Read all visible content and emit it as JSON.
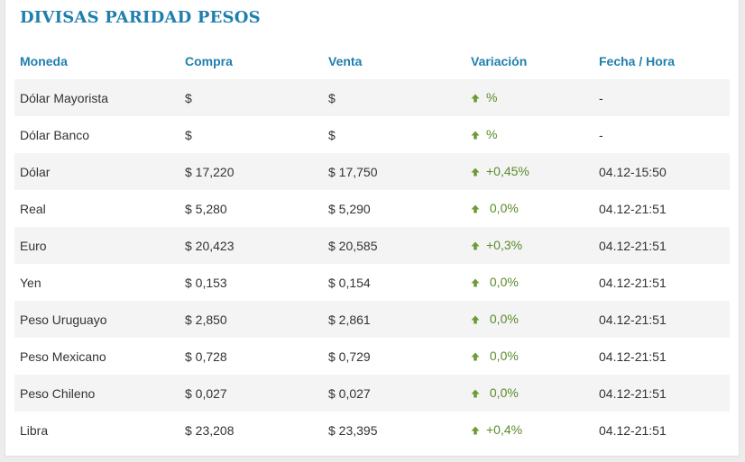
{
  "title": "DIVISAS PARIDAD PESOS",
  "colors": {
    "accent": "#1e7fae",
    "up": "#5a8a2a"
  },
  "headers": {
    "moneda": "Moneda",
    "compra": "Compra",
    "venta": "Venta",
    "variacion": "Variación",
    "fecha": "Fecha / Hora"
  },
  "rows": [
    {
      "moneda": "Dólar Mayorista",
      "compra": "$",
      "venta": "$",
      "variacion": "%",
      "fecha": "-",
      "trend_icon": "arrow-up-icon"
    },
    {
      "moneda": "Dólar Banco",
      "compra": "$",
      "venta": "$",
      "variacion": "%",
      "fecha": "-",
      "trend_icon": "arrow-up-icon"
    },
    {
      "moneda": "Dólar",
      "compra": "$ 17,220",
      "venta": "$ 17,750",
      "variacion": "+0,45%",
      "fecha": "04.12-15:50",
      "trend_icon": "arrow-up-icon"
    },
    {
      "moneda": "Real",
      "compra": "$ 5,280",
      "venta": "$ 5,290",
      "variacion": " 0,0%",
      "fecha": "04.12-21:51",
      "trend_icon": "arrow-up-icon"
    },
    {
      "moneda": "Euro",
      "compra": "$ 20,423",
      "venta": "$ 20,585",
      "variacion": "+0,3%",
      "fecha": "04.12-21:51",
      "trend_icon": "arrow-up-icon"
    },
    {
      "moneda": "Yen",
      "compra": "$ 0,153",
      "venta": "$ 0,154",
      "variacion": " 0,0%",
      "fecha": "04.12-21:51",
      "trend_icon": "arrow-up-icon"
    },
    {
      "moneda": "Peso Uruguayo",
      "compra": "$ 2,850",
      "venta": "$ 2,861",
      "variacion": " 0,0%",
      "fecha": "04.12-21:51",
      "trend_icon": "arrow-up-icon"
    },
    {
      "moneda": "Peso Mexicano",
      "compra": "$ 0,728",
      "venta": "$ 0,729",
      "variacion": " 0,0%",
      "fecha": "04.12-21:51",
      "trend_icon": "arrow-up-icon"
    },
    {
      "moneda": "Peso Chileno",
      "compra": "$ 0,027",
      "venta": "$ 0,027",
      "variacion": " 0,0%",
      "fecha": "04.12-21:51",
      "trend_icon": "arrow-up-icon"
    },
    {
      "moneda": "Libra",
      "compra": "$ 23,208",
      "venta": "$ 23,395",
      "variacion": "+0,4%",
      "fecha": "04.12-21:51",
      "trend_icon": "arrow-up-icon"
    }
  ]
}
